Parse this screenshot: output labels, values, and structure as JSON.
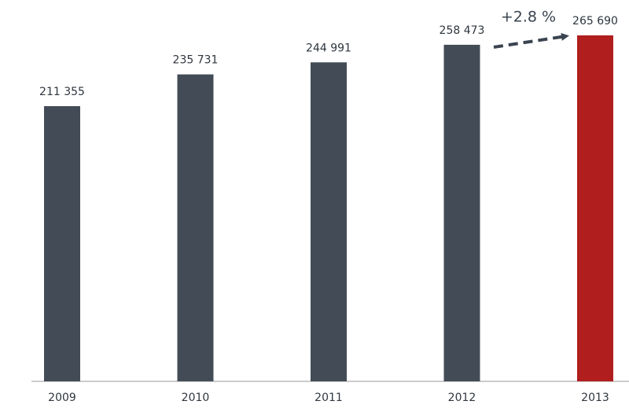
{
  "chart_data": {
    "type": "bar",
    "categories": [
      "2009",
      "2010",
      "2011",
      "2012",
      "2013"
    ],
    "values": [
      211355,
      235731,
      244991,
      258473,
      265690
    ],
    "value_labels": [
      "211 355",
      "235 731",
      "244 991",
      "258 473",
      "265 690"
    ],
    "colors": [
      "#434c56",
      "#434c56",
      "#434c56",
      "#434c56",
      "#b01e1e"
    ],
    "annotation": "+2.8 %"
  }
}
